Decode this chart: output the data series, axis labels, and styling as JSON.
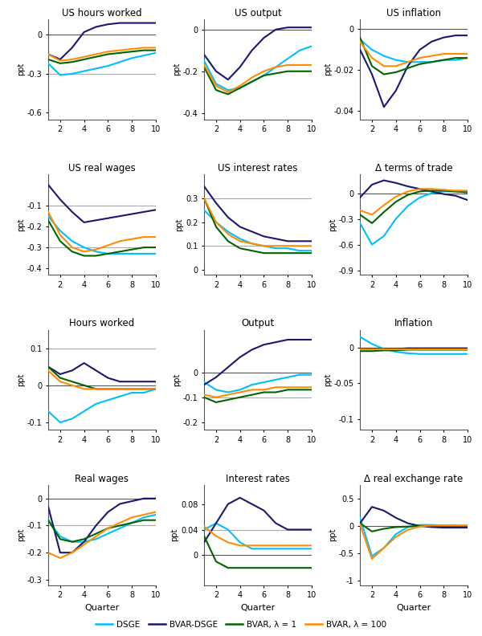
{
  "quarters": [
    1,
    2,
    3,
    4,
    5,
    6,
    7,
    8,
    9,
    10
  ],
  "colors": {
    "DSGE": "#00BFFF",
    "BVAR_DSGE": "#191970",
    "BVAR_1": "#006400",
    "BVAR_100": "#FF8C00"
  },
  "line_width": 1.5,
  "panels": [
    {
      "title": "US hours worked",
      "ylabel": "ppt",
      "ylim": [
        -0.65,
        0.12
      ],
      "yticks": [
        0.0,
        -0.3,
        -0.6
      ],
      "zero_line": true,
      "hlines": [
        -0.3
      ],
      "series": {
        "DSGE": [
          -0.22,
          -0.31,
          -0.3,
          -0.28,
          -0.26,
          -0.24,
          -0.21,
          -0.18,
          -0.16,
          -0.14
        ],
        "BVAR_DSGE": [
          -0.15,
          -0.19,
          -0.1,
          0.02,
          0.06,
          0.08,
          0.09,
          0.09,
          0.09,
          0.09
        ],
        "BVAR_1": [
          -0.19,
          -0.22,
          -0.21,
          -0.19,
          -0.17,
          -0.15,
          -0.14,
          -0.13,
          -0.12,
          -0.12
        ],
        "BVAR_100": [
          -0.15,
          -0.2,
          -0.19,
          -0.17,
          -0.15,
          -0.13,
          -0.12,
          -0.11,
          -0.1,
          -0.1
        ]
      }
    },
    {
      "title": "US output",
      "ylabel": "ppt",
      "ylim": [
        -0.43,
        0.05
      ],
      "yticks": [
        0.0,
        -0.2,
        -0.4
      ],
      "zero_line": true,
      "hlines": [],
      "series": {
        "DSGE": [
          -0.15,
          -0.26,
          -0.29,
          -0.28,
          -0.25,
          -0.22,
          -0.18,
          -0.14,
          -0.1,
          -0.08
        ],
        "BVAR_DSGE": [
          -0.12,
          -0.2,
          -0.24,
          -0.18,
          -0.1,
          -0.04,
          0.0,
          0.01,
          0.01,
          0.01
        ],
        "BVAR_1": [
          -0.18,
          -0.29,
          -0.31,
          -0.28,
          -0.25,
          -0.22,
          -0.21,
          -0.2,
          -0.2,
          -0.2
        ],
        "BVAR_100": [
          -0.17,
          -0.27,
          -0.3,
          -0.27,
          -0.23,
          -0.2,
          -0.18,
          -0.17,
          -0.17,
          -0.17
        ]
      }
    },
    {
      "title": "US inflation",
      "ylabel": "ppt",
      "ylim": [
        -0.044,
        0.005
      ],
      "yticks": [
        0.0,
        -0.02,
        -0.04
      ],
      "zero_line": true,
      "hlines": [],
      "series": {
        "DSGE": [
          -0.005,
          -0.01,
          -0.013,
          -0.015,
          -0.016,
          -0.016,
          -0.016,
          -0.015,
          -0.015,
          -0.014
        ],
        "BVAR_DSGE": [
          -0.01,
          -0.022,
          -0.038,
          -0.03,
          -0.018,
          -0.01,
          -0.006,
          -0.004,
          -0.003,
          -0.003
        ],
        "BVAR_1": [
          -0.004,
          -0.018,
          -0.022,
          -0.021,
          -0.019,
          -0.017,
          -0.016,
          -0.015,
          -0.014,
          -0.014
        ],
        "BVAR_100": [
          -0.006,
          -0.014,
          -0.018,
          -0.018,
          -0.016,
          -0.014,
          -0.013,
          -0.012,
          -0.012,
          -0.012
        ]
      }
    },
    {
      "title": "US real wages",
      "ylabel": "ppt",
      "ylim": [
        -0.43,
        0.05
      ],
      "yticks": [
        -0.1,
        -0.2,
        -0.3,
        -0.4
      ],
      "zero_line": false,
      "hlines": [
        -0.1,
        -0.3
      ],
      "series": {
        "DSGE": [
          -0.15,
          -0.22,
          -0.27,
          -0.3,
          -0.32,
          -0.33,
          -0.33,
          -0.33,
          -0.33,
          -0.33
        ],
        "BVAR_DSGE": [
          0.0,
          -0.07,
          -0.13,
          -0.18,
          -0.17,
          -0.16,
          -0.15,
          -0.14,
          -0.13,
          -0.12
        ],
        "BVAR_1": [
          -0.17,
          -0.27,
          -0.32,
          -0.34,
          -0.34,
          -0.33,
          -0.32,
          -0.31,
          -0.3,
          -0.3
        ],
        "BVAR_100": [
          -0.13,
          -0.24,
          -0.3,
          -0.32,
          -0.31,
          -0.29,
          -0.27,
          -0.26,
          -0.25,
          -0.25
        ]
      }
    },
    {
      "title": "US interest rates",
      "ylabel": "ppt",
      "ylim": [
        -0.02,
        0.4
      ],
      "yticks": [
        0.0,
        0.1,
        0.2,
        0.3
      ],
      "zero_line": false,
      "hlines": [
        0.1,
        0.3
      ],
      "series": {
        "DSGE": [
          0.25,
          0.2,
          0.16,
          0.13,
          0.11,
          0.1,
          0.09,
          0.09,
          0.08,
          0.08
        ],
        "BVAR_DSGE": [
          0.35,
          0.28,
          0.22,
          0.18,
          0.16,
          0.14,
          0.13,
          0.12,
          0.12,
          0.12
        ],
        "BVAR_1": [
          0.3,
          0.18,
          0.12,
          0.09,
          0.08,
          0.07,
          0.07,
          0.07,
          0.07,
          0.07
        ],
        "BVAR_100": [
          0.3,
          0.2,
          0.15,
          0.12,
          0.11,
          0.1,
          0.1,
          0.1,
          0.1,
          0.1
        ]
      }
    },
    {
      "title": "Δ terms of trade",
      "ylabel": "ppt",
      "ylim": [
        -0.95,
        0.22
      ],
      "yticks": [
        0.0,
        -0.3,
        -0.6,
        -0.9
      ],
      "zero_line": true,
      "hlines": [],
      "series": {
        "DSGE": [
          -0.35,
          -0.6,
          -0.5,
          -0.3,
          -0.15,
          -0.05,
          0.0,
          0.02,
          0.02,
          0.01
        ],
        "BVAR_DSGE": [
          -0.05,
          0.1,
          0.15,
          0.12,
          0.08,
          0.05,
          0.02,
          -0.01,
          -0.03,
          -0.08
        ],
        "BVAR_1": [
          -0.25,
          -0.35,
          -0.22,
          -0.1,
          -0.02,
          0.02,
          0.03,
          0.03,
          0.02,
          0.01
        ],
        "BVAR_100": [
          -0.2,
          -0.25,
          -0.14,
          -0.04,
          0.02,
          0.05,
          0.05,
          0.04,
          0.03,
          0.03
        ]
      }
    },
    {
      "title": "Hours worked",
      "ylabel": "ppt",
      "ylim": [
        -0.12,
        0.15
      ],
      "yticks": [
        0.1,
        0.0,
        -0.1
      ],
      "zero_line": true,
      "hlines": [
        0.1
      ],
      "series": {
        "DSGE": [
          -0.07,
          -0.1,
          -0.09,
          -0.07,
          -0.05,
          -0.04,
          -0.03,
          -0.02,
          -0.02,
          -0.01
        ],
        "BVAR_DSGE": [
          0.05,
          0.03,
          0.04,
          0.06,
          0.04,
          0.02,
          0.01,
          0.01,
          0.01,
          0.01
        ],
        "BVAR_1": [
          0.05,
          0.02,
          0.01,
          0.0,
          -0.01,
          -0.01,
          -0.01,
          -0.01,
          -0.01,
          -0.01
        ],
        "BVAR_100": [
          0.04,
          0.01,
          0.0,
          -0.01,
          -0.01,
          -0.01,
          -0.01,
          -0.01,
          -0.01,
          -0.01
        ]
      }
    },
    {
      "title": "Output",
      "ylabel": "ppt",
      "ylim": [
        -0.23,
        0.17
      ],
      "yticks": [
        0.0,
        -0.1,
        -0.2
      ],
      "zero_line": true,
      "hlines": [
        -0.1
      ],
      "series": {
        "DSGE": [
          -0.04,
          -0.07,
          -0.08,
          -0.07,
          -0.05,
          -0.04,
          -0.03,
          -0.02,
          -0.01,
          -0.01
        ],
        "BVAR_DSGE": [
          -0.05,
          -0.02,
          0.02,
          0.06,
          0.09,
          0.11,
          0.12,
          0.13,
          0.13,
          0.13
        ],
        "BVAR_1": [
          -0.1,
          -0.12,
          -0.11,
          -0.1,
          -0.09,
          -0.08,
          -0.08,
          -0.07,
          -0.07,
          -0.07
        ],
        "BVAR_100": [
          -0.09,
          -0.1,
          -0.09,
          -0.08,
          -0.07,
          -0.07,
          -0.06,
          -0.06,
          -0.06,
          -0.06
        ]
      }
    },
    {
      "title": "Inflation",
      "ylabel": "ppt",
      "ylim": [
        -0.115,
        0.025
      ],
      "yticks": [
        0.0,
        -0.05,
        -0.1
      ],
      "zero_line": true,
      "hlines": [],
      "series": {
        "DSGE": [
          0.015,
          0.005,
          -0.002,
          -0.006,
          -0.008,
          -0.009,
          -0.009,
          -0.009,
          -0.009,
          -0.009
        ],
        "BVAR_DSGE": [
          -0.002,
          -0.002,
          -0.002,
          -0.002,
          -0.001,
          -0.001,
          -0.001,
          -0.001,
          -0.001,
          -0.001
        ],
        "BVAR_1": [
          -0.005,
          -0.005,
          -0.004,
          -0.004,
          -0.003,
          -0.003,
          -0.003,
          -0.003,
          -0.003,
          -0.003
        ],
        "BVAR_100": [
          -0.003,
          -0.003,
          -0.003,
          -0.003,
          -0.003,
          -0.003,
          -0.003,
          -0.003,
          -0.003,
          -0.003
        ]
      }
    },
    {
      "title": "Real wages",
      "ylabel": "ppt",
      "ylim": [
        -0.32,
        0.05
      ],
      "yticks": [
        0.0,
        -0.1,
        -0.2,
        -0.3
      ],
      "zero_line": true,
      "hlines": [
        -0.1
      ],
      "series": {
        "DSGE": [
          -0.08,
          -0.14,
          -0.16,
          -0.16,
          -0.15,
          -0.13,
          -0.11,
          -0.09,
          -0.07,
          -0.06
        ],
        "BVAR_DSGE": [
          -0.03,
          -0.2,
          -0.2,
          -0.16,
          -0.1,
          -0.05,
          -0.02,
          -0.01,
          0.0,
          0.0
        ],
        "BVAR_1": [
          -0.08,
          -0.15,
          -0.16,
          -0.15,
          -0.13,
          -0.11,
          -0.1,
          -0.09,
          -0.08,
          -0.08
        ],
        "BVAR_100": [
          -0.2,
          -0.22,
          -0.2,
          -0.17,
          -0.14,
          -0.11,
          -0.09,
          -0.07,
          -0.06,
          -0.05
        ]
      }
    },
    {
      "title": "Interest rates",
      "ylabel": "ppt",
      "ylim": [
        -0.047,
        0.11
      ],
      "yticks": [
        0.0,
        0.04,
        0.08
      ],
      "zero_line": true,
      "hlines": [
        0.04
      ],
      "series": {
        "DSGE": [
          0.04,
          0.05,
          0.04,
          0.02,
          0.01,
          0.01,
          0.01,
          0.01,
          0.01,
          0.01
        ],
        "BVAR_DSGE": [
          0.02,
          0.05,
          0.08,
          0.09,
          0.08,
          0.07,
          0.05,
          0.04,
          0.04,
          0.04
        ],
        "BVAR_1": [
          0.03,
          -0.01,
          -0.02,
          -0.02,
          -0.02,
          -0.02,
          -0.02,
          -0.02,
          -0.02,
          -0.02
        ],
        "BVAR_100": [
          0.045,
          0.03,
          0.02,
          0.015,
          0.015,
          0.015,
          0.015,
          0.015,
          0.015,
          0.015
        ]
      }
    },
    {
      "title": "Δ real exchange rate",
      "ylabel": "ppt",
      "ylim": [
        -1.08,
        0.75
      ],
      "yticks": [
        0.5,
        0.0,
        -0.5,
        -1.0
      ],
      "zero_line": true,
      "hlines": [],
      "series": {
        "DSGE": [
          0.15,
          -0.55,
          -0.4,
          -0.15,
          -0.02,
          0.02,
          0.02,
          0.01,
          0.01,
          0.0
        ],
        "BVAR_DSGE": [
          0.05,
          0.35,
          0.28,
          0.15,
          0.05,
          0.0,
          -0.02,
          -0.03,
          -0.03,
          -0.03
        ],
        "BVAR_1": [
          0.05,
          -0.1,
          -0.05,
          -0.02,
          -0.01,
          0.0,
          0.0,
          0.0,
          0.0,
          0.0
        ],
        "BVAR_100": [
          0.03,
          -0.6,
          -0.4,
          -0.2,
          -0.07,
          -0.01,
          0.01,
          0.01,
          0.01,
          0.01
        ]
      }
    }
  ],
  "legend": {
    "labels": [
      "DSGE",
      "BVAR-DSGE",
      "BVAR, λ = 1",
      "BVAR, λ = 100"
    ],
    "colors": [
      "#00BFFF",
      "#191970",
      "#006400",
      "#FF8C00"
    ]
  }
}
